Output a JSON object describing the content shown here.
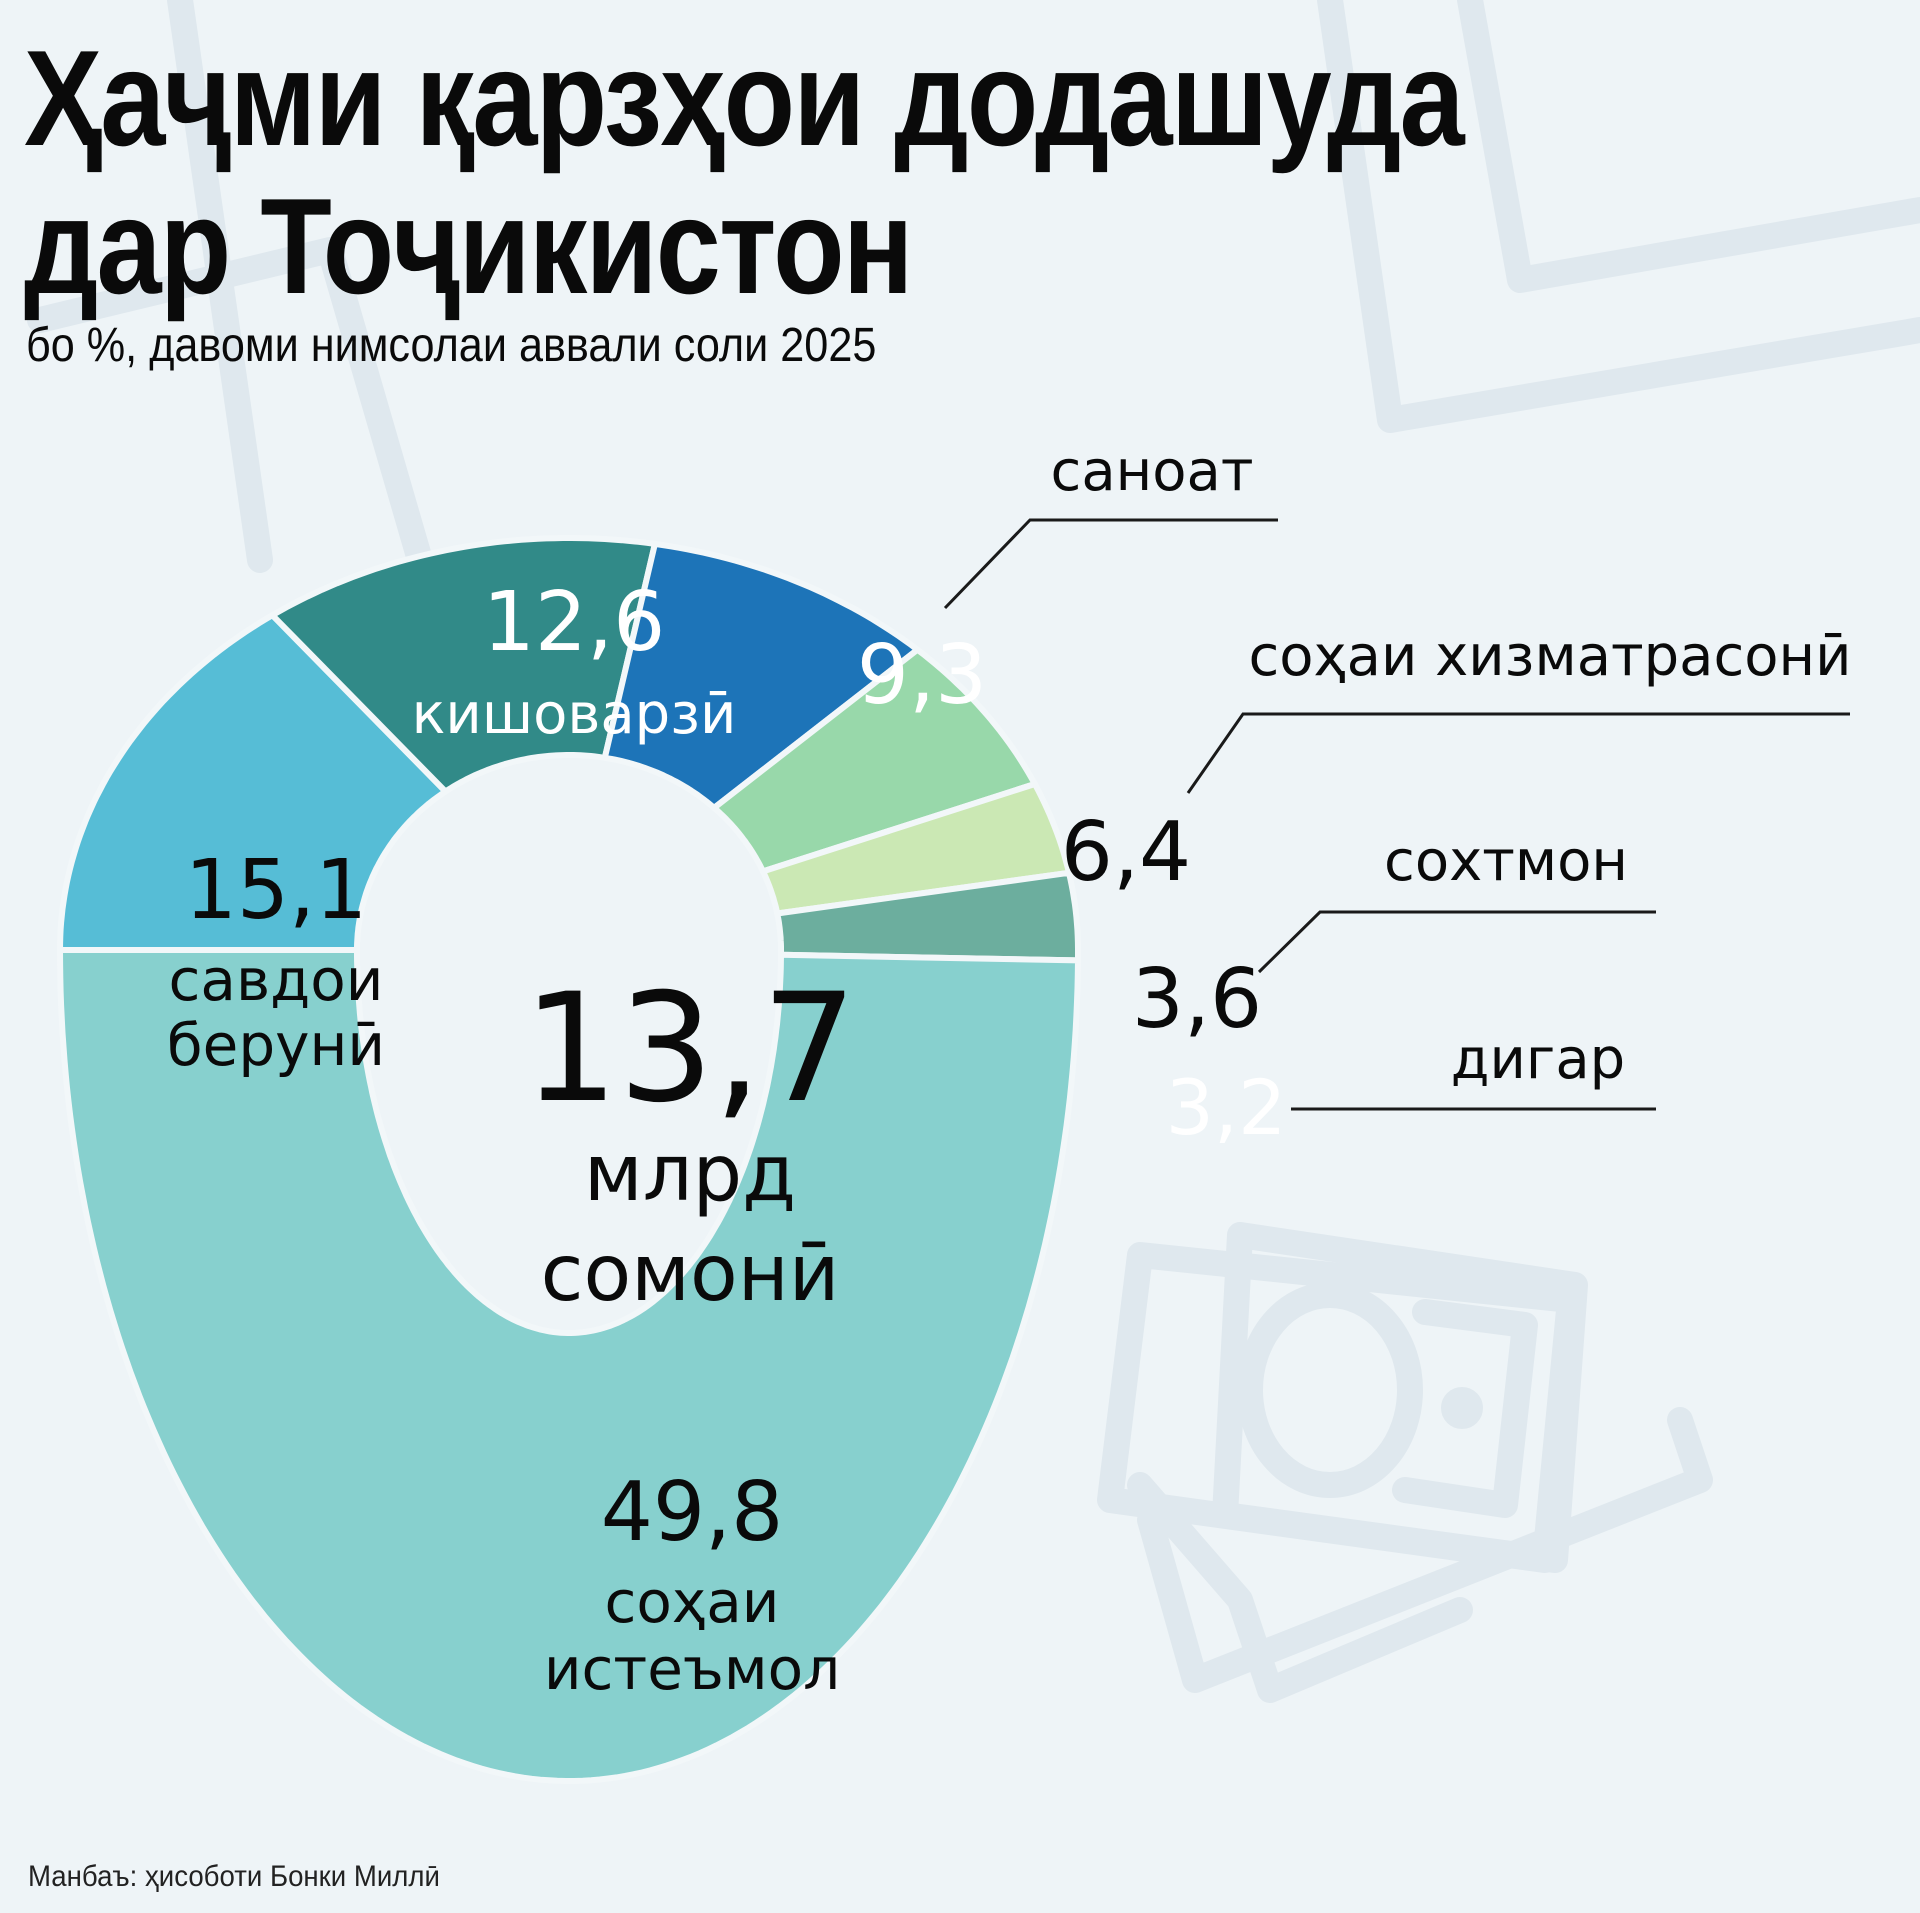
{
  "header": {
    "title_line1": "Ҳаҷми қарзҳои додашуда",
    "title_line2": "дар Тоҷикистон",
    "subtitle": "бо %, давоми нимсолаи аввали соли 2025"
  },
  "center": {
    "value": "13,7",
    "unit_line1": "млрд",
    "unit_line2": "сомонӣ"
  },
  "source": "Манбаъ: ҳисоботи Бонки Миллӣ",
  "colors": {
    "background": "#eef4f7",
    "watermark": "#dfe8ee",
    "separator": "#f2f7f9"
  },
  "chart_data": {
    "type": "pie",
    "subtype": "donut",
    "title": "Ҳаҷми қарзҳои додашуда дар Тоҷикистон",
    "subtitle": "бо %, давоми нимсолаи аввали соли 2025",
    "center_label": "13,7 млрд сомонӣ",
    "unit": "%",
    "categories": [
      "савдои берунӣ",
      "кишоварзӣ",
      "саноат",
      "соҳаи хизматрасонӣ",
      "сохтмон",
      "дигар",
      "соҳаи истеъмол"
    ],
    "values": [
      15.1,
      12.6,
      9.3,
      6.4,
      3.6,
      3.2,
      49.8
    ],
    "value_labels": [
      "15,1",
      "12,6",
      "9,3",
      "6,4",
      "3,6",
      "3,2",
      "49,8"
    ],
    "colors": [
      "#56bdd6",
      "#318a88",
      "#1d74b8",
      "#98d8aa",
      "#cbe8b4",
      "#6cae9e",
      "#87d0ce"
    ],
    "source": "Манбаъ: ҳисоботи Бонки Миллӣ"
  },
  "labels": [
    {
      "value": "15,1",
      "name_line1": "савдои",
      "name_line2": "берунӣ",
      "value_color": "#0a0a0a",
      "name_color": "#0a0a0a"
    },
    {
      "value": "12,6",
      "name_line1": "кишоварзӣ",
      "name_line2": "",
      "value_color": "#ffffff",
      "name_color": "#ffffff"
    },
    {
      "value": "9,3",
      "name_line1": "саноат",
      "name_line2": "",
      "value_color": "#ffffff",
      "name_color": "#0a0a0a"
    },
    {
      "value": "6,4",
      "name_line1": "соҳаи хизматрасонӣ",
      "name_line2": "",
      "value_color": "#0a0a0a",
      "name_color": "#0a0a0a"
    },
    {
      "value": "3,6",
      "name_line1": "сохтмон",
      "name_line2": "",
      "value_color": "#0a0a0a",
      "name_color": "#0a0a0a"
    },
    {
      "value": "3,2",
      "name_line1": "дигар",
      "name_line2": "",
      "value_color": "#ffffff",
      "name_color": "#0a0a0a"
    },
    {
      "value": "49,8",
      "name_line1": "соҳаи",
      "name_line2": "истеъмол",
      "value_color": "#0a0a0a",
      "name_color": "#0a0a0a"
    }
  ]
}
